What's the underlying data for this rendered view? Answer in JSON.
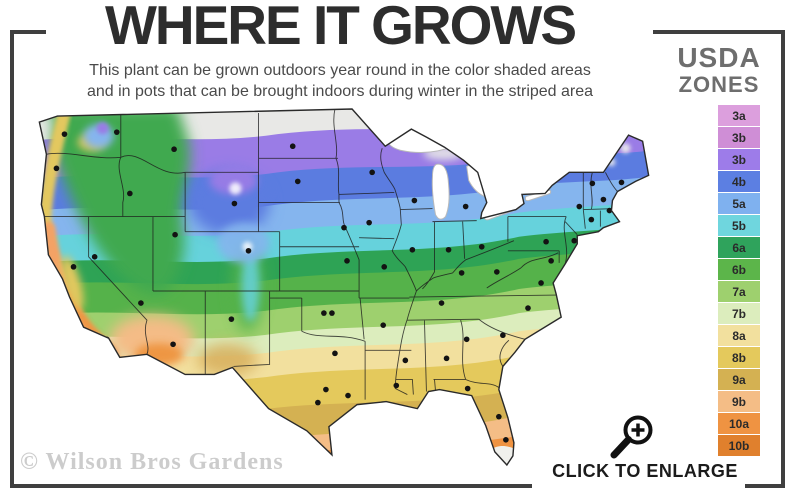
{
  "header": {
    "title": "WHERE IT GROWS",
    "subtitle_line1": "This plant can be grown outdoors year round in the color shaded areas",
    "subtitle_line2": "and in pots that can be brought indoors during winter in the striped area"
  },
  "legend": {
    "title_line1": "USDA",
    "title_line2": "ZONES",
    "zones": [
      {
        "label": "3a",
        "color": "#dc9fdd"
      },
      {
        "label": "3b",
        "color": "#cf8ed6"
      },
      {
        "label": "3b",
        "color": "#9d7ce9"
      },
      {
        "label": "4b",
        "color": "#5c7fe2"
      },
      {
        "label": "5a",
        "color": "#7fb1ef"
      },
      {
        "label": "5b",
        "color": "#6fd6de"
      },
      {
        "label": "6a",
        "color": "#2fa35c"
      },
      {
        "label": "6b",
        "color": "#5cb54a"
      },
      {
        "label": "7a",
        "color": "#9ed06e"
      },
      {
        "label": "7b",
        "color": "#dcedbd"
      },
      {
        "label": "8a",
        "color": "#f2e09e"
      },
      {
        "label": "8b",
        "color": "#e4c95c"
      },
      {
        "label": "9a",
        "color": "#d4b152"
      },
      {
        "label": "9b",
        "color": "#f4bd86"
      },
      {
        "label": "10a",
        "color": "#ef9342"
      },
      {
        "label": "10b",
        "color": "#e0802d"
      }
    ]
  },
  "map": {
    "description": "USDA plant hardiness zones map of the United States with city markers",
    "marker_color": "#131313"
  },
  "footer": {
    "watermark": "© Wilson Bros Gardens",
    "enlarge_label": "CLICK TO ENLARGE",
    "magnifier_icon": "magnifier-plus-icon"
  }
}
